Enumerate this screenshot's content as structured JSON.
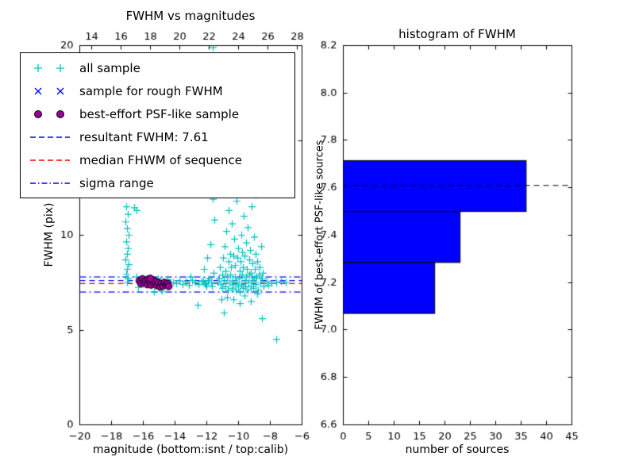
{
  "chart_data": [
    {
      "type": "scatter",
      "title": "FWHM vs magnitudes",
      "xlabel": "magnitude (bottom:isnt / top:calib)",
      "ylabel": "FWHM (pix)",
      "xlim": [
        -20,
        -6
      ],
      "ylim": [
        0,
        20
      ],
      "x_ticks": [
        -20,
        -18,
        -16,
        -14,
        -12,
        -10,
        -8,
        -6
      ],
      "y_ticks": [
        0,
        5,
        10,
        15,
        20
      ],
      "top_axis": {
        "lim": [
          13.2,
          28.3
        ],
        "ticks": [
          14,
          16,
          18,
          20,
          22,
          24,
          26,
          28
        ]
      },
      "series": [
        {
          "name": "all sample",
          "marker": "plus",
          "color": "#00bfbf",
          "points": [
            [
              -17.05,
              11.5
            ],
            [
              -16.95,
              11.1
            ],
            [
              -17.1,
              10.7
            ],
            [
              -17.0,
              10.35
            ],
            [
              -16.9,
              10.0
            ],
            [
              -17.05,
              9.65
            ],
            [
              -16.95,
              9.3
            ],
            [
              -17.0,
              9.0
            ],
            [
              -17.1,
              8.7
            ],
            [
              -16.9,
              8.45
            ],
            [
              -17.0,
              8.2
            ],
            [
              -17.05,
              7.95
            ],
            [
              -16.95,
              7.7
            ],
            [
              -17.0,
              7.5
            ],
            [
              -16.55,
              11.45
            ],
            [
              -16.4,
              11.3
            ],
            [
              -16.4,
              7.8
            ],
            [
              -16.25,
              7.55
            ],
            [
              -16.1,
              7.7
            ],
            [
              -16.0,
              7.4
            ],
            [
              -15.9,
              7.65
            ],
            [
              -15.75,
              7.5
            ],
            [
              -15.6,
              7.75
            ],
            [
              -15.5,
              7.35
            ],
            [
              -15.35,
              7.6
            ],
            [
              -15.2,
              7.45
            ],
            [
              -15.05,
              7.7
            ],
            [
              -14.9,
              7.3
            ],
            [
              -14.75,
              7.55
            ],
            [
              -14.6,
              7.4
            ],
            [
              -14.45,
              7.65
            ],
            [
              -14.3,
              7.5
            ],
            [
              -16.3,
              7.25
            ],
            [
              -15.0,
              7.25
            ],
            [
              -15.3,
              7.0
            ],
            [
              -14.8,
              7.05
            ],
            [
              -14.1,
              7.5
            ],
            [
              -13.9,
              7.45
            ],
            [
              -13.7,
              7.6
            ],
            [
              -13.5,
              7.4
            ],
            [
              -13.3,
              7.55
            ],
            [
              -13.1,
              7.35
            ],
            [
              -12.9,
              7.6
            ],
            [
              -12.7,
              7.5
            ],
            [
              -12.5,
              7.4
            ],
            [
              -12.3,
              7.55
            ],
            [
              -12.1,
              7.45
            ],
            [
              -11.9,
              7.6
            ],
            [
              -11.7,
              7.5
            ],
            [
              -13.0,
              7.8
            ],
            [
              -12.0,
              7.3
            ],
            [
              -12.55,
              6.3
            ],
            [
              -12.2,
              7.6
            ],
            [
              -12.15,
              8.2
            ],
            [
              -12.05,
              7.4
            ],
            [
              -11.95,
              8.8
            ],
            [
              -11.85,
              7.7
            ],
            [
              -11.75,
              9.5
            ],
            [
              -11.65,
              7.3
            ],
            [
              -11.55,
              8.0
            ],
            [
              -11.5,
              10.8
            ],
            [
              -11.6,
              11.9
            ],
            [
              -11.3,
              7.5
            ],
            [
              -11.2,
              7.7
            ],
            [
              -11.15,
              8.3
            ],
            [
              -11.1,
              7.4
            ],
            [
              -11.0,
              7.9
            ],
            [
              -11.0,
              7.2
            ],
            [
              -10.95,
              8.8
            ],
            [
              -10.9,
              7.6
            ],
            [
              -10.85,
              9.4
            ],
            [
              -10.8,
              7.3
            ],
            [
              -10.8,
              8.1
            ],
            [
              -10.75,
              10.2
            ],
            [
              -10.7,
              7.8
            ],
            [
              -10.65,
              7.1
            ],
            [
              -10.6,
              8.6
            ],
            [
              -10.6,
              11.3
            ],
            [
              -10.55,
              7.5
            ],
            [
              -10.5,
              9.0
            ],
            [
              -10.5,
              7.9
            ],
            [
              -10.45,
              8.3
            ],
            [
              -10.4,
              7.2
            ],
            [
              -10.4,
              10.6
            ],
            [
              -10.35,
              7.6
            ],
            [
              -10.3,
              8.9
            ],
            [
              -10.3,
              7.4
            ],
            [
              -10.25,
              9.8
            ],
            [
              -10.2,
              7.8
            ],
            [
              -10.2,
              8.4
            ],
            [
              -10.15,
              7.1
            ],
            [
              -10.1,
              11.8
            ],
            [
              -10.1,
              7.5
            ],
            [
              -10.05,
              8.8
            ],
            [
              -10.0,
              7.3
            ],
            [
              -10.0,
              9.3
            ],
            [
              -9.95,
              7.7
            ],
            [
              -9.95,
              12.3
            ],
            [
              -9.9,
              8.1
            ],
            [
              -9.9,
              7.0
            ],
            [
              -9.85,
              8.6
            ],
            [
              -9.8,
              7.4
            ],
            [
              -9.8,
              10.0
            ],
            [
              -9.75,
              7.9
            ],
            [
              -9.75,
              9.1
            ],
            [
              -9.7,
              7.2
            ],
            [
              -9.7,
              8.3
            ],
            [
              -9.65,
              11.0
            ],
            [
              -9.6,
              7.6
            ],
            [
              -9.6,
              8.9
            ],
            [
              -9.55,
              7.3
            ],
            [
              -9.5,
              9.6
            ],
            [
              -9.5,
              7.8
            ],
            [
              -9.45,
              8.2
            ],
            [
              -9.4,
              7.1
            ],
            [
              -9.4,
              10.4
            ],
            [
              -9.35,
              7.5
            ],
            [
              -9.3,
              8.7
            ],
            [
              -9.3,
              7.9
            ],
            [
              -9.25,
              9.2
            ],
            [
              -9.2,
              7.3
            ],
            [
              -9.2,
              8.0
            ],
            [
              -9.15,
              11.5
            ],
            [
              -9.1,
              7.6
            ],
            [
              -9.1,
              8.5
            ],
            [
              -9.05,
              7.2
            ],
            [
              -9.0,
              9.9
            ],
            [
              -9.0,
              7.7
            ],
            [
              -8.95,
              8.2
            ],
            [
              -8.9,
              7.4
            ],
            [
              -8.9,
              9.0
            ],
            [
              -8.85,
              7.8
            ],
            [
              -8.8,
              8.6
            ],
            [
              -8.75,
              7.1
            ],
            [
              -8.7,
              7.9
            ],
            [
              -8.65,
              8.3
            ],
            [
              -8.6,
              7.5
            ],
            [
              -8.55,
              9.4
            ],
            [
              -8.5,
              7.7
            ],
            [
              -8.45,
              8.0
            ],
            [
              -8.4,
              7.3
            ],
            [
              -10.3,
              6.6
            ],
            [
              -9.9,
              6.4
            ],
            [
              -9.6,
              6.8
            ],
            [
              -10.7,
              6.7
            ],
            [
              -9.2,
              6.5
            ],
            [
              -8.8,
              6.9
            ],
            [
              -11.05,
              6.6
            ],
            [
              -10.9,
              5.9
            ],
            [
              -11.6,
              19.9
            ],
            [
              -11.5,
              19.2
            ],
            [
              -11.55,
              18.4
            ],
            [
              -11.45,
              17.6
            ],
            [
              -11.6,
              16.9
            ],
            [
              -11.5,
              16.2
            ],
            [
              -11.4,
              15.4
            ],
            [
              -11.55,
              14.7
            ],
            [
              -11.45,
              13.9
            ],
            [
              -11.5,
              13.2
            ],
            [
              -10.9,
              12.8
            ],
            [
              -10.6,
              13.6
            ],
            [
              -10.3,
              12.5
            ],
            [
              -10.0,
              14.2
            ],
            [
              -9.7,
              12.7
            ],
            [
              -11.0,
              15.0
            ],
            [
              -10.8,
              17.5
            ],
            [
              -11.2,
              18.8
            ],
            [
              -8.2,
              7.55
            ],
            [
              -7.9,
              7.45
            ],
            [
              -7.6,
              7.5
            ],
            [
              -7.3,
              7.55
            ],
            [
              -7.0,
              7.5
            ],
            [
              -8.1,
              7.35
            ],
            [
              -8.5,
              5.6
            ],
            [
              -7.6,
              4.5
            ],
            [
              -9.1,
              12.4
            ],
            [
              -8.9,
              12.1
            ]
          ]
        },
        {
          "name": "sample for rough FWHM",
          "marker": "x",
          "color": "#0000ff",
          "points": [
            [
              -16.2,
              7.55
            ],
            [
              -16.05,
              7.45
            ],
            [
              -15.9,
              7.6
            ],
            [
              -15.75,
              7.4
            ],
            [
              -15.6,
              7.55
            ],
            [
              -15.45,
              7.45
            ],
            [
              -15.3,
              7.6
            ],
            [
              -15.15,
              7.5
            ],
            [
              -15.0,
              7.4
            ],
            [
              -14.85,
              7.55
            ],
            [
              -14.7,
              7.45
            ],
            [
              -14.55,
              7.5
            ]
          ]
        },
        {
          "name": "best-effort PSF-like sample",
          "marker": "circle",
          "color": "#990099",
          "edge_color": "#000000",
          "points": [
            [
              -16.25,
              7.6
            ],
            [
              -16.15,
              7.45
            ],
            [
              -16.05,
              7.7
            ],
            [
              -15.95,
              7.5
            ],
            [
              -15.85,
              7.62
            ],
            [
              -15.75,
              7.4
            ],
            [
              -15.7,
              7.68
            ],
            [
              -15.6,
              7.52
            ],
            [
              -15.5,
              7.38
            ],
            [
              -15.45,
              7.65
            ],
            [
              -15.35,
              7.5
            ],
            [
              -15.25,
              7.58
            ],
            [
              -15.15,
              7.35
            ],
            [
              -15.05,
              7.5
            ],
            [
              -14.95,
              7.28
            ],
            [
              -14.85,
              7.45
            ],
            [
              -14.75,
              7.32
            ],
            [
              -14.65,
              7.5
            ],
            [
              -14.55,
              7.38
            ],
            [
              -14.45,
              7.45
            ],
            [
              -14.4,
              7.3
            ],
            [
              -15.55,
              7.72
            ]
          ]
        }
      ],
      "ref_lines": [
        {
          "name": "resultant FWHM: 7.61",
          "y": [
            7.61
          ],
          "style": "dashed",
          "color": "#0000ff"
        },
        {
          "name": "median FHWM of sequence",
          "y": [
            7.45
          ],
          "style": "dashed",
          "color": "#ff0000"
        },
        {
          "name": "sigma range",
          "y": [
            7.0,
            7.8
          ],
          "style": "dashdot",
          "color": "#0000ff"
        }
      ],
      "legend": [
        {
          "label": "all sample",
          "type": "marker",
          "marker": "plus",
          "color": "#00bfbf"
        },
        {
          "label": "sample for rough FWHM",
          "type": "marker",
          "marker": "x",
          "color": "#0000ff"
        },
        {
          "label": "best-effort PSF-like sample",
          "type": "marker",
          "marker": "circle",
          "color": "#990099"
        },
        {
          "label": "resultant FWHM: 7.61",
          "type": "line",
          "style": "dashed",
          "color": "#0000ff"
        },
        {
          "label": "median FHWM of sequence",
          "type": "line",
          "style": "dashed",
          "color": "#ff0000"
        },
        {
          "label": "sigma range",
          "type": "line",
          "style": "dashdot",
          "color": "#0000ff"
        }
      ]
    },
    {
      "type": "bar",
      "orientation": "horizontal",
      "title": "histogram of FWHM",
      "xlabel": "number of sources",
      "ylabel": "FWHM of best-effort PSF-like sources",
      "xlim": [
        0,
        45
      ],
      "ylim": [
        6.6,
        8.2
      ],
      "x_ticks": [
        0,
        5,
        10,
        15,
        20,
        25,
        30,
        35,
        40,
        45
      ],
      "y_ticks": [
        6.6,
        6.8,
        7.0,
        7.2,
        7.4,
        7.6,
        7.8,
        8.0,
        8.2
      ],
      "bar_color": "#0000ff",
      "bar_edge_color": "#000000",
      "bins": [
        {
          "y_from": 7.07,
          "y_to": 7.285,
          "count": 18
        },
        {
          "y_from": 7.285,
          "y_to": 7.5,
          "count": 23
        },
        {
          "y_from": 7.5,
          "y_to": 7.715,
          "count": 36
        }
      ],
      "ref_line": {
        "y": 7.61,
        "style": "dashed",
        "color": "#000000"
      }
    }
  ]
}
